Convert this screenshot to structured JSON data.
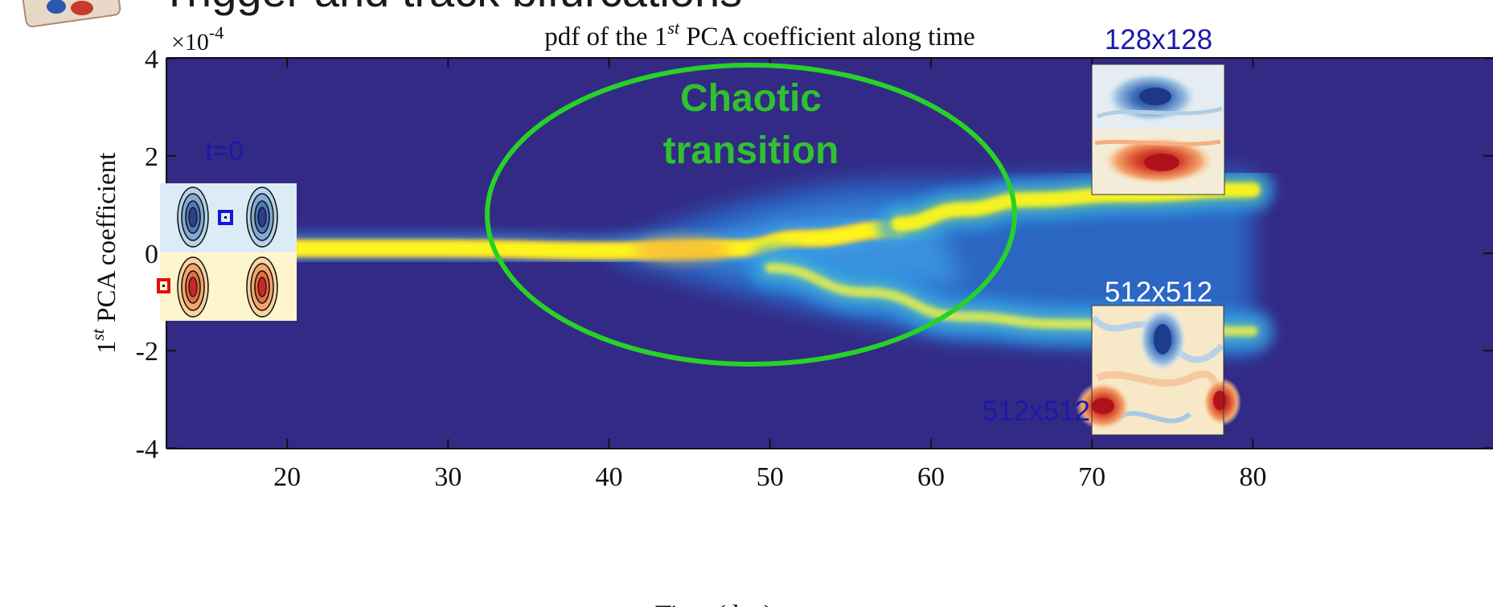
{
  "slide": {
    "title_partial": "Trigger and track bifurcations"
  },
  "chart_data": {
    "type": "heatmap",
    "title": "pdf of the 1st PCA coefficient along time",
    "title_parts": [
      "pdf of the 1",
      "st",
      " PCA coefficient along time"
    ],
    "xlabel": "Time (day)",
    "ylabel_parts": [
      "1",
      "st",
      " PCA coefficient"
    ],
    "y_multiplier_parts": [
      "×10",
      "-4"
    ],
    "xlim": [
      12.5,
      80
    ],
    "ylim": [
      -4,
      4
    ],
    "x_ticks": [
      20,
      30,
      40,
      50,
      60,
      70,
      80
    ],
    "y_ticks": [
      -4,
      -2,
      0,
      2,
      4
    ],
    "x_tick_labels": [
      "20",
      "30",
      "40",
      "50",
      "60",
      "70",
      "80"
    ],
    "y_tick_labels": [
      "-4",
      "-2",
      "0",
      "2",
      "4"
    ],
    "colors": {
      "background": "#332a86",
      "high": "#fdf51a",
      "mid": "#3fa4e9",
      "peak_orange": "#f5b63c",
      "ellipse": "#27d227"
    },
    "branches": [
      {
        "name": "trunk",
        "points": [
          [
            12.5,
            0.1
          ],
          [
            30,
            0.1
          ],
          [
            40,
            0.05
          ],
          [
            48,
            0.1
          ],
          [
            52,
            0.3
          ],
          [
            58,
            0.5
          ]
        ]
      },
      {
        "name": "upper",
        "points": [
          [
            58,
            0.6
          ],
          [
            62,
            0.9
          ],
          [
            66,
            1.1
          ],
          [
            72,
            1.2
          ],
          [
            80,
            1.3
          ]
        ]
      },
      {
        "name": "lower",
        "points": [
          [
            50,
            -0.3
          ],
          [
            56,
            -0.8
          ],
          [
            62,
            -1.3
          ],
          [
            68,
            -1.45
          ],
          [
            80,
            -1.6
          ]
        ]
      }
    ],
    "annotations": [
      {
        "text": "Chaotic transition",
        "lines": [
          "Chaotic",
          "transition"
        ],
        "x": 48.8,
        "y": 0.8,
        "color": "#2fc12f"
      },
      {
        "text": "t=0",
        "color": "#1a1aa8"
      },
      {
        "text": "128x128",
        "color": "#1a1aa8"
      },
      {
        "text": "512x512",
        "color": "#ffffff"
      },
      {
        "text": "512x512",
        "color": "#1a1aa8"
      }
    ],
    "insets": [
      {
        "name": "initial-state",
        "label": "t=0"
      },
      {
        "name": "final-128",
        "label": "128x128"
      },
      {
        "name": "final-512",
        "label": "512x512"
      }
    ]
  }
}
